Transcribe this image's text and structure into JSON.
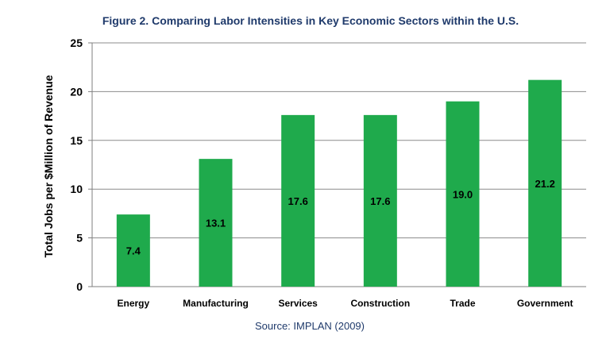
{
  "title": "Figure 2. Comparing Labor Intensities in Key Economic Sectors within the U.S.",
  "source": "Source: IMPLAN (2009)",
  "chart_data": {
    "type": "bar",
    "title": "Figure 2. Comparing Labor Intensities in Key Economic Sectors within the U.S.",
    "xlabel": "",
    "ylabel": "Total Jobs per $Million of Revenue",
    "categories": [
      "Energy",
      "Manufacturing",
      "Services",
      "Construction",
      "Trade",
      "Government"
    ],
    "values": [
      7.4,
      13.1,
      17.6,
      17.6,
      19.0,
      21.2
    ],
    "value_labels": [
      "7.4",
      "13.1",
      "17.6",
      "17.6",
      "19.0",
      "21.2"
    ],
    "ylim": [
      0,
      25
    ],
    "yticks": [
      0,
      5,
      10,
      15,
      20,
      25
    ],
    "grid": true,
    "legend": "none",
    "bar_color": "#1faa4c"
  }
}
